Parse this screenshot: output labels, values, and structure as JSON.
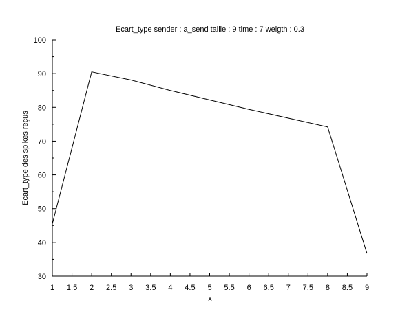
{
  "chart_data": {
    "type": "line",
    "title": "Ecart_type sender : a_send taille : 9 time : 7 weigth : 0.3",
    "xlabel": "x",
    "ylabel": "Ecart_type des spikes reçus",
    "xlim": [
      1,
      9
    ],
    "ylim": [
      30,
      100
    ],
    "x_ticks": [
      "1",
      "1.5",
      "2",
      "2.5",
      "3",
      "3.5",
      "4",
      "4.5",
      "5",
      "5.5",
      "6",
      "6.5",
      "7",
      "7.5",
      "8",
      "8.5",
      "9"
    ],
    "y_ticks": [
      "30",
      "40",
      "50",
      "60",
      "70",
      "80",
      "90",
      "100"
    ],
    "grid": false,
    "series": [
      {
        "x": [
          1,
          2,
          3,
          4,
          5,
          6,
          7,
          8,
          9
        ],
        "y": [
          45.5,
          90.5,
          88.1,
          85.0,
          82.2,
          79.4,
          76.8,
          74.2,
          36.7
        ],
        "color": "#000000"
      }
    ]
  }
}
